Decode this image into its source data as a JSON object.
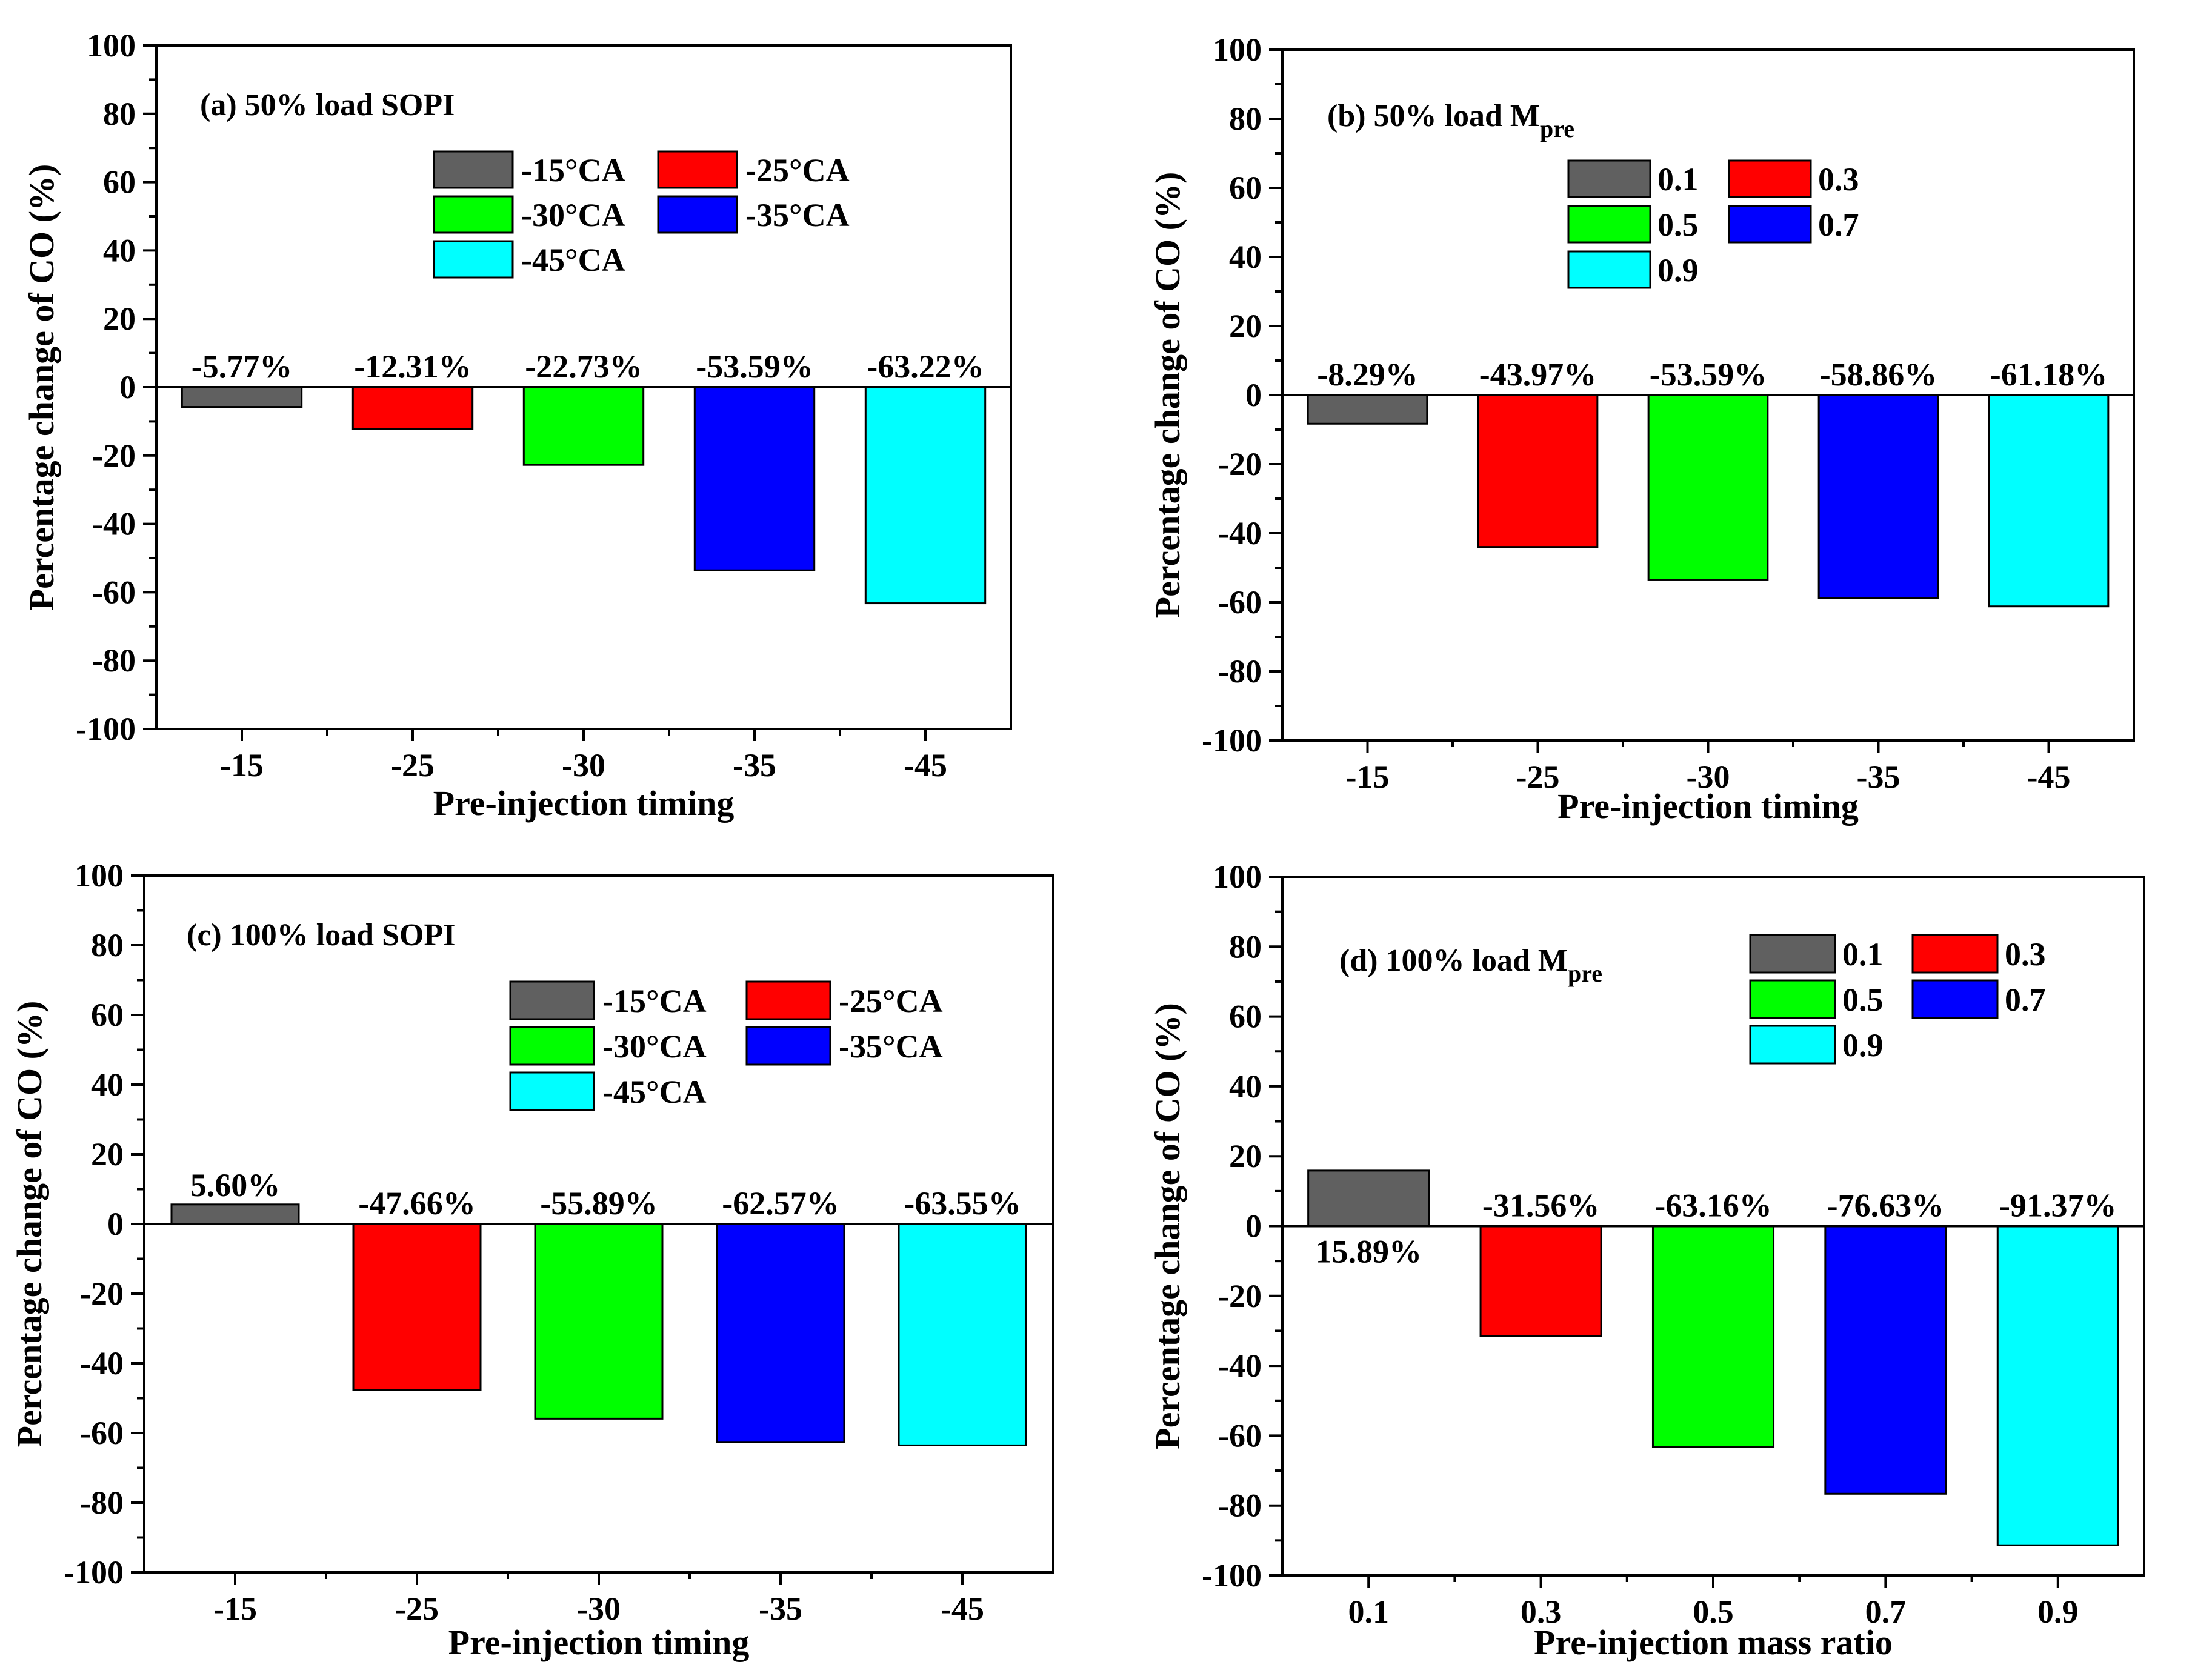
{
  "chart_data": [
    {
      "type": "bar",
      "title": "(a) 50% load SOPI",
      "categories": [
        "-15",
        "-25",
        "-30",
        "-35",
        "-45"
      ],
      "values": [
        -5.77,
        -12.31,
        -22.73,
        -53.59,
        -63.22
      ],
      "data_labels": [
        "-5.77%",
        "-12.31%",
        "-22.73%",
        "-53.59%",
        "-63.22%"
      ],
      "colors": [
        "#606060",
        "#ff0000",
        "#00ff00",
        "#0000ff",
        "#00ffff"
      ],
      "legend": [
        "-15°CA",
        "-25°CA",
        "-30°CA",
        "-35°CA",
        "-45°CA"
      ],
      "xlabel": "Pre-injection timing",
      "ylabel": "Percentage change of CO (%)",
      "ylim": [
        -100,
        100
      ],
      "yticks": [
        "100",
        "80",
        "60",
        "40",
        "20",
        "0",
        "-20",
        "-40",
        "-60",
        "-80",
        "-100"
      ]
    },
    {
      "type": "bar",
      "title": "(b) 50% load M",
      "title_sub": "pre",
      "categories": [
        "-15",
        "-25",
        "-30",
        "-35",
        "-45"
      ],
      "values": [
        -8.29,
        -43.97,
        -53.59,
        -58.86,
        -61.18
      ],
      "data_labels": [
        "-8.29%",
        "-43.97%",
        "-53.59%",
        "-58.86%",
        "-61.18%"
      ],
      "colors": [
        "#606060",
        "#ff0000",
        "#00ff00",
        "#0000ff",
        "#00ffff"
      ],
      "legend": [
        "0.1",
        "0.3",
        "0.5",
        "0.7",
        "0.9"
      ],
      "xlabel": "Pre-injection timing",
      "ylabel": "Percentage change of CO (%)",
      "ylim": [
        -100,
        100
      ],
      "yticks": [
        "100",
        "80",
        "60",
        "40",
        "20",
        "0",
        "-20",
        "-40",
        "-60",
        "-80",
        "-100"
      ]
    },
    {
      "type": "bar",
      "title": "(c) 100% load SOPI",
      "categories": [
        "-15",
        "-25",
        "-30",
        "-35",
        "-45"
      ],
      "values": [
        5.6,
        -47.66,
        -55.89,
        -62.57,
        -63.55
      ],
      "data_labels": [
        "5.60%",
        "-47.66%",
        "-55.89%",
        "-62.57%",
        "-63.55%"
      ],
      "colors": [
        "#606060",
        "#ff0000",
        "#00ff00",
        "#0000ff",
        "#00ffff"
      ],
      "legend": [
        "-15°CA",
        "-25°CA",
        "-30°CA",
        "-35°CA",
        "-45°CA"
      ],
      "xlabel": "Pre-injection timing",
      "ylabel": "Percentage change of CO (%)",
      "ylim": [
        -100,
        100
      ],
      "yticks": [
        "100",
        "80",
        "60",
        "40",
        "20",
        "0",
        "-20",
        "-40",
        "-60",
        "-80",
        "-100"
      ]
    },
    {
      "type": "bar",
      "title": "(d) 100% load M",
      "title_sub": "pre",
      "categories": [
        "0.1",
        "0.3",
        "0.5",
        "0.7",
        "0.9"
      ],
      "values": [
        15.89,
        -31.56,
        -63.16,
        -76.63,
        -91.37
      ],
      "data_labels": [
        "15.89%",
        "-31.56%",
        "-63.16%",
        "-76.63%",
        "-91.37%"
      ],
      "colors": [
        "#606060",
        "#ff0000",
        "#00ff00",
        "#0000ff",
        "#00ffff"
      ],
      "legend": [
        "0.1",
        "0.3",
        "0.5",
        "0.7",
        "0.9"
      ],
      "xlabel": "Pre-injection mass ratio",
      "ylabel": "Percentage change of CO (%)",
      "ylim": [
        -100,
        100
      ],
      "yticks": [
        "100",
        "80",
        "60",
        "40",
        "20",
        "0",
        "-20",
        "-40",
        "-60",
        "-80",
        "-100"
      ]
    }
  ]
}
